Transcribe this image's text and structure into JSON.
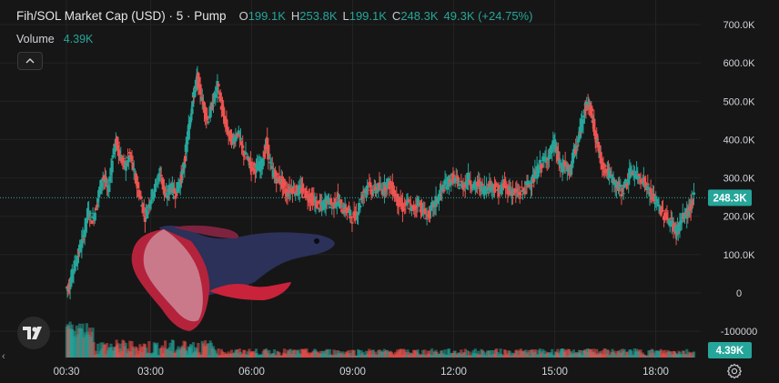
{
  "legend": {
    "title": "Fih/SOL Market Cap (USD) · 5 · Pump",
    "open_key": "O",
    "open": "199.1K",
    "high_key": "H",
    "high": "253.8K",
    "low_key": "L",
    "low": "199.1K",
    "close_key": "C",
    "close": "248.3K",
    "change": "49.3K (+24.75%)"
  },
  "volume": {
    "label": "Volume",
    "value": "4.39K"
  },
  "icons": {
    "collapse": "chevron-up-icon",
    "logo": "tradingview-logo",
    "settings": "gear-icon",
    "scroll": "chevron-left-icon"
  },
  "colors": {
    "background": "#161616",
    "up": "#26a69a",
    "down": "#ef5350",
    "grid": "#232323",
    "axis_text": "#d1d4dc"
  },
  "chart_data": {
    "type": "candlestick",
    "y_ticks": [
      "700.0K",
      "600.0K",
      "500.0K",
      "400.0K",
      "300.0K",
      "200.0K",
      "100.0K",
      "0",
      "-100000"
    ],
    "y_tick_values": [
      700000,
      600000,
      500000,
      400000,
      300000,
      200000,
      100000,
      0,
      -100000
    ],
    "x_ticks": [
      "00:30",
      "03:00",
      "06:00",
      "09:00",
      "12:00",
      "15:00",
      "18:00"
    ],
    "x_tick_hours": [
      0.5,
      3,
      6,
      9,
      12,
      15,
      18
    ],
    "ylim": [
      -125000,
      720000
    ],
    "x_range_hours": [
      -0.8,
      20.5
    ],
    "last_price_label": "248.3K",
    "last_price": 248300,
    "last_volume_label": "4.39K",
    "grid": true,
    "close_path": [
      [
        0.5,
        12000
      ],
      [
        0.6,
        20000
      ],
      [
        0.7,
        55000
      ],
      [
        0.85,
        100000
      ],
      [
        1.0,
        140000
      ],
      [
        1.15,
        210000
      ],
      [
        1.3,
        190000
      ],
      [
        1.45,
        250000
      ],
      [
        1.6,
        305000
      ],
      [
        1.75,
        265000
      ],
      [
        1.9,
        370000
      ],
      [
        2.0,
        395000
      ],
      [
        2.1,
        355000
      ],
      [
        2.25,
        330000
      ],
      [
        2.4,
        360000
      ],
      [
        2.55,
        300000
      ],
      [
        2.7,
        250000
      ],
      [
        2.85,
        200000
      ],
      [
        3.0,
        245000
      ],
      [
        3.15,
        275000
      ],
      [
        3.3,
        320000
      ],
      [
        3.45,
        245000
      ],
      [
        3.6,
        280000
      ],
      [
        3.75,
        260000
      ],
      [
        3.9,
        295000
      ],
      [
        4.0,
        330000
      ],
      [
        4.1,
        400000
      ],
      [
        4.2,
        470000
      ],
      [
        4.3,
        520000
      ],
      [
        4.4,
        560000
      ],
      [
        4.55,
        500000
      ],
      [
        4.7,
        450000
      ],
      [
        4.85,
        490000
      ],
      [
        5.0,
        540000
      ],
      [
        5.15,
        470000
      ],
      [
        5.3,
        420000
      ],
      [
        5.45,
        395000
      ],
      [
        5.6,
        420000
      ],
      [
        5.75,
        370000
      ],
      [
        5.9,
        345000
      ],
      [
        6.0,
        330000
      ],
      [
        6.15,
        325000
      ],
      [
        6.3,
        335000
      ],
      [
        6.45,
        390000
      ],
      [
        6.6,
        320000
      ],
      [
        6.75,
        300000
      ],
      [
        6.9,
        290000
      ],
      [
        7.05,
        260000
      ],
      [
        7.2,
        275000
      ],
      [
        7.35,
        265000
      ],
      [
        7.5,
        270000
      ],
      [
        7.65,
        255000
      ],
      [
        7.8,
        245000
      ],
      [
        7.95,
        230000
      ],
      [
        8.1,
        225000
      ],
      [
        8.25,
        245000
      ],
      [
        8.4,
        225000
      ],
      [
        8.55,
        245000
      ],
      [
        8.7,
        220000
      ],
      [
        8.85,
        215000
      ],
      [
        9.0,
        195000
      ],
      [
        9.15,
        210000
      ],
      [
        9.3,
        255000
      ],
      [
        9.45,
        280000
      ],
      [
        9.6,
        265000
      ],
      [
        9.75,
        275000
      ],
      [
        9.9,
        268000
      ],
      [
        10.05,
        290000
      ],
      [
        10.2,
        270000
      ],
      [
        10.35,
        240000
      ],
      [
        10.5,
        222000
      ],
      [
        10.65,
        235000
      ],
      [
        10.8,
        215000
      ],
      [
        10.95,
        240000
      ],
      [
        11.1,
        212000
      ],
      [
        11.25,
        200000
      ],
      [
        11.4,
        225000
      ],
      [
        11.55,
        248000
      ],
      [
        11.7,
        275000
      ],
      [
        11.85,
        290000
      ],
      [
        12.0,
        300000
      ],
      [
        12.15,
        285000
      ],
      [
        12.3,
        280000
      ],
      [
        12.45,
        300000
      ],
      [
        12.6,
        275000
      ],
      [
        12.75,
        285000
      ],
      [
        12.9,
        270000
      ],
      [
        13.05,
        280000
      ],
      [
        13.2,
        278000
      ],
      [
        13.35,
        265000
      ],
      [
        13.5,
        282000
      ],
      [
        13.65,
        270000
      ],
      [
        13.8,
        262000
      ],
      [
        13.95,
        258000
      ],
      [
        14.1,
        270000
      ],
      [
        14.25,
        285000
      ],
      [
        14.4,
        300000
      ],
      [
        14.55,
        330000
      ],
      [
        14.7,
        345000
      ],
      [
        14.85,
        360000
      ],
      [
        15.0,
        390000
      ],
      [
        15.1,
        355000
      ],
      [
        15.2,
        320000
      ],
      [
        15.3,
        340000
      ],
      [
        15.45,
        310000
      ],
      [
        15.55,
        355000
      ],
      [
        15.7,
        390000
      ],
      [
        15.8,
        440000
      ],
      [
        15.9,
        480000
      ],
      [
        16.0,
        495000
      ],
      [
        16.1,
        470000
      ],
      [
        16.2,
        420000
      ],
      [
        16.3,
        380000
      ],
      [
        16.4,
        340000
      ],
      [
        16.55,
        320000
      ],
      [
        16.7,
        300000
      ],
      [
        16.85,
        280000
      ],
      [
        17.0,
        265000
      ],
      [
        17.15,
        290000
      ],
      [
        17.3,
        320000
      ],
      [
        17.45,
        305000
      ],
      [
        17.6,
        300000
      ],
      [
        17.75,
        278000
      ],
      [
        17.9,
        250000
      ],
      [
        18.05,
        235000
      ],
      [
        18.2,
        210000
      ],
      [
        18.35,
        195000
      ],
      [
        18.5,
        180000
      ],
      [
        18.6,
        160000
      ],
      [
        18.7,
        175000
      ],
      [
        18.85,
        200000
      ],
      [
        19.0,
        215000
      ],
      [
        19.15,
        248300
      ]
    ]
  }
}
